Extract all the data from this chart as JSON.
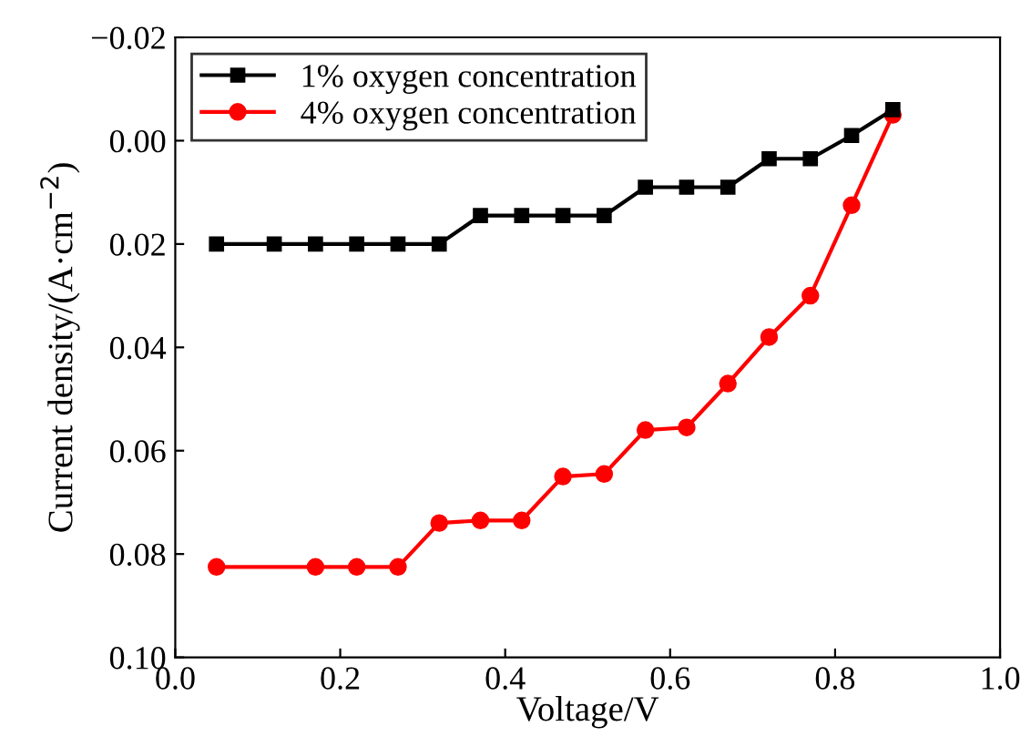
{
  "chart_data": {
    "type": "line",
    "xlabel": "Voltage/V",
    "ylabel": "Current density/(A·cm$^{−2}$)",
    "xlim": [
      0.0,
      1.0
    ],
    "xticks": [
      {
        "value": 0.0,
        "label": "0.0"
      },
      {
        "value": 0.2,
        "label": "0.2"
      },
      {
        "value": 0.4,
        "label": "0.4"
      },
      {
        "value": 0.6,
        "label": "0.6"
      },
      {
        "value": 0.8,
        "label": "0.8"
      },
      {
        "value": 1.0,
        "label": "1.0"
      }
    ],
    "ylim": [
      0.1,
      -0.02
    ],
    "yticks": [
      {
        "value": -0.02,
        "label": "−0.02"
      },
      {
        "value": 0.0,
        "label": "0.00"
      },
      {
        "value": 0.02,
        "label": "0.02"
      },
      {
        "value": 0.04,
        "label": "0.04"
      },
      {
        "value": 0.06,
        "label": "0.06"
      },
      {
        "value": 0.08,
        "label": "0.08"
      },
      {
        "value": 0.1,
        "label": "0.10"
      }
    ],
    "grid": false,
    "legend": "top left",
    "series": [
      {
        "name": "1% oxygen concentration",
        "color": "#000000",
        "marker": "square",
        "x": [
          0.05,
          0.12,
          0.17,
          0.22,
          0.27,
          0.32,
          0.37,
          0.42,
          0.47,
          0.52,
          0.57,
          0.62,
          0.67,
          0.72,
          0.77,
          0.82,
          0.87
        ],
        "values": [
          0.02,
          0.02,
          0.02,
          0.02,
          0.02,
          0.02,
          0.0145,
          0.0145,
          0.0145,
          0.0145,
          0.009,
          0.009,
          0.009,
          0.0035,
          0.0035,
          -0.001,
          -0.006
        ]
      },
      {
        "name": "4% oxygen concentration",
        "color": "#ff0000",
        "marker": "circle",
        "x": [
          0.05,
          0.17,
          0.22,
          0.27,
          0.32,
          0.37,
          0.42,
          0.47,
          0.52,
          0.57,
          0.62,
          0.67,
          0.72,
          0.77,
          0.82,
          0.87
        ],
        "values": [
          0.0825,
          0.0825,
          0.0825,
          0.0825,
          0.074,
          0.0735,
          0.0735,
          0.065,
          0.0645,
          0.056,
          0.0555,
          0.047,
          0.038,
          0.03,
          0.0125,
          -0.005
        ]
      }
    ]
  }
}
